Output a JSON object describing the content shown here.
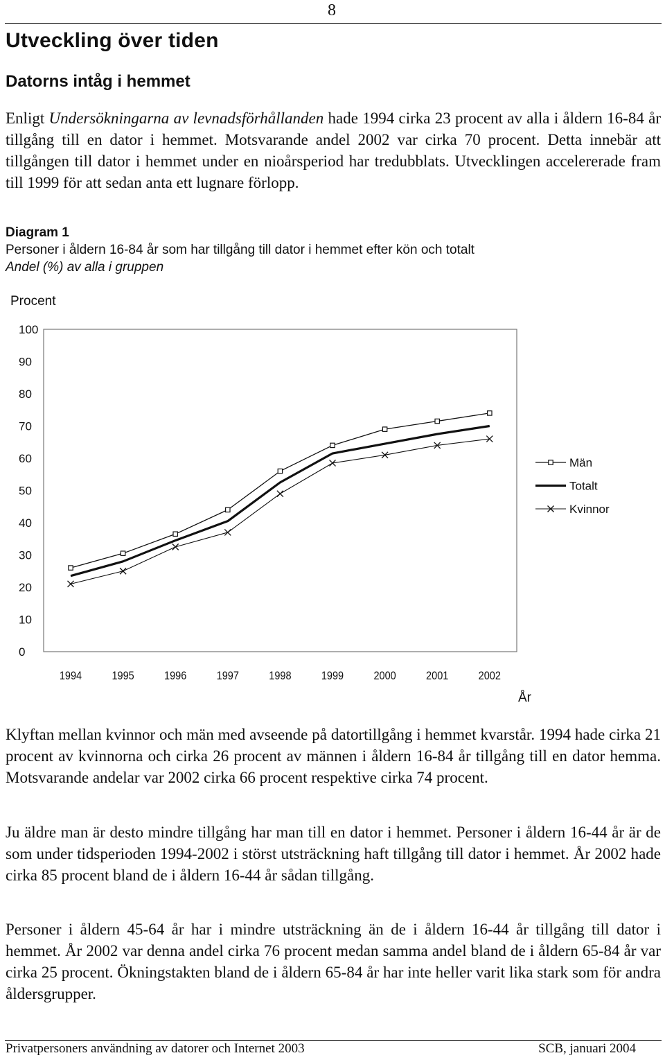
{
  "page_number": "8",
  "heading": "Utveckling över tiden",
  "subheading": "Datorns intåg i hemmet",
  "intro": {
    "before": "Enligt ",
    "source_italic": "Undersökningarna av levnadsförhållanden",
    "after": " hade 1994 cirka 23 procent av alla i åldern 16-84 år tillgång till en dator i hemmet. Motsvarande andel 2002 var cirka 70 procent. Detta innebär att tillgången till dator i hemmet under en nioårsperiod har tredubblats. Utvecklingen accelererade fram till 1999 för att sedan anta ett lugnare förlopp."
  },
  "diagram": {
    "label": "Diagram 1",
    "title": "Personer i åldern 16-84 år som har tillgång till dator i hemmet efter kön och totalt",
    "subtitle": "Andel (%) av alla i gruppen"
  },
  "chart_data": {
    "type": "line",
    "title": "Personer i åldern 16-84 år som har tillgång till dator i hemmet efter kön och totalt",
    "subtitle": "Andel (%) av alla i gruppen",
    "xlabel": "År",
    "ylabel": "Procent",
    "ylim": [
      0,
      100
    ],
    "yticks": [
      "0",
      "10",
      "20",
      "30",
      "40",
      "50",
      "60",
      "70",
      "80",
      "90",
      "100"
    ],
    "categories": [
      "1994",
      "1995",
      "1996",
      "1997",
      "1998",
      "1999",
      "2000",
      "2001",
      "2002"
    ],
    "legend_position": "right",
    "grid": false,
    "series": [
      {
        "name": "Män",
        "marker": "square",
        "values": [
          26,
          30.5,
          36.5,
          44,
          56,
          64,
          69,
          71.5,
          74
        ]
      },
      {
        "name": "Totalt",
        "marker": "none",
        "values": [
          23.5,
          28,
          34.5,
          40.5,
          52.5,
          61.5,
          64.5,
          67.5,
          70
        ]
      },
      {
        "name": "Kvinnor",
        "marker": "x",
        "values": [
          21,
          25,
          32.5,
          37,
          49,
          58.5,
          61,
          64,
          66
        ]
      }
    ]
  },
  "para2": "Klyftan mellan kvinnor och män med avseende på datortillgång i hemmet kvarstår. 1994 hade cirka 21 procent av kvinnorna och cirka 26 procent av männen i åldern 16-84 år tillgång till en dator hemma. Motsvarande andelar var 2002 cirka 66 procent respektive cirka 74 procent.",
  "para3": "Ju äldre man är desto mindre tillgång har man till en dator i hemmet. Personer i åldern 16-44 år är de som under tidsperioden 1994-2002 i störst utsträckning haft tillgång till dator i hemmet. År 2002 hade cirka 85 procent bland de i åldern 16-44 år sådan tillgång.",
  "para4": "Personer i åldern 45-64 år har i mindre utsträckning än de i åldern 16-44 år tillgång till dator i hemmet. År 2002 var denna andel cirka 76 procent medan samma andel bland de i åldern 65-84 år var cirka 25 procent. Ökningstakten bland de i åldern 65-84 år har inte heller varit lika stark som för andra åldersgrupper.",
  "footer": {
    "left": "Privatpersoners användning av datorer och Internet 2003",
    "right": "SCB, januari 2004"
  }
}
